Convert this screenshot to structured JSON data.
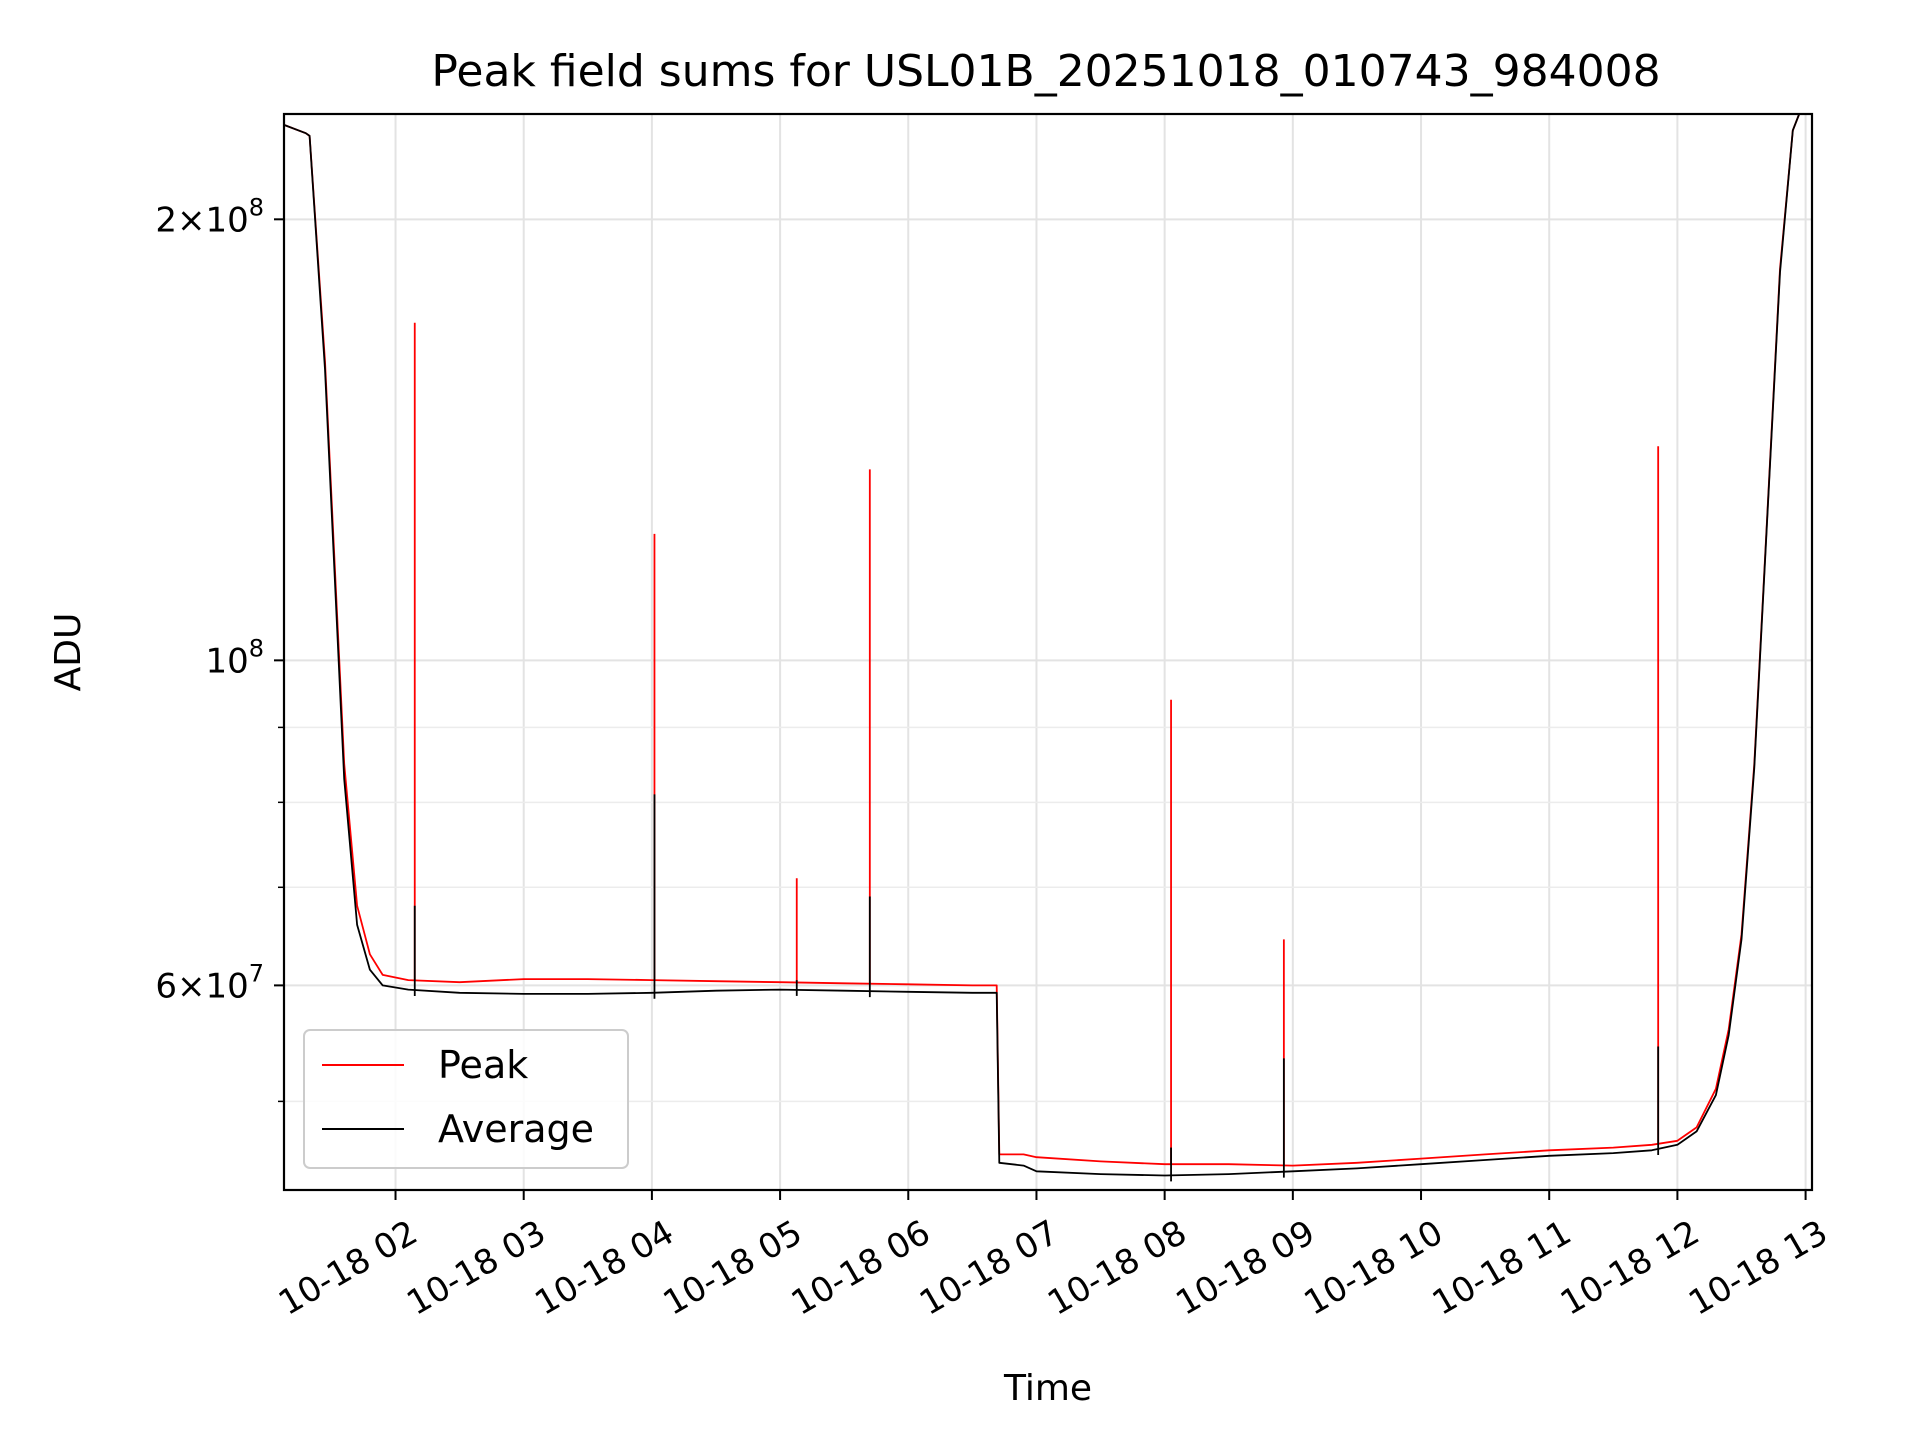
{
  "chart_data": {
    "type": "line",
    "title": "Peak field sums for USL01B_20251018_010743_984008",
    "xlabel": "Time",
    "ylabel": "ADU",
    "yscale": "log",
    "ylim": [
      43500000,
      236000000
    ],
    "xlim_hours": [
      1.13,
      13.05
    ],
    "grid": true,
    "x_ticks": [
      {
        "hour": 2,
        "label": "10-18 02"
      },
      {
        "hour": 3,
        "label": "10-18 03"
      },
      {
        "hour": 4,
        "label": "10-18 04"
      },
      {
        "hour": 5,
        "label": "10-18 05"
      },
      {
        "hour": 6,
        "label": "10-18 06"
      },
      {
        "hour": 7,
        "label": "10-18 07"
      },
      {
        "hour": 8,
        "label": "10-18 08"
      },
      {
        "hour": 9,
        "label": "10-18 09"
      },
      {
        "hour": 10,
        "label": "10-18 10"
      },
      {
        "hour": 11,
        "label": "10-18 11"
      },
      {
        "hour": 12,
        "label": "10-18 12"
      },
      {
        "hour": 13,
        "label": "10-18 13"
      }
    ],
    "y_major_ticks": [
      {
        "value": 60000000,
        "mantissa": "6",
        "base": "10",
        "exp": "7"
      },
      {
        "value": 100000000,
        "mantissa": "",
        "base": "10",
        "exp": "8"
      },
      {
        "value": 200000000,
        "mantissa": "2",
        "base": "10",
        "exp": "8"
      }
    ],
    "y_minor_ticks": [
      50000000,
      70000000,
      80000000,
      90000000
    ],
    "legend_position": "lower-left",
    "series": [
      {
        "name": "Peak",
        "color": "#ff0000",
        "x": [
          1.13,
          1.3,
          1.33,
          1.45,
          1.6,
          1.7,
          1.8,
          1.9,
          2.1,
          2.5,
          3.0,
          3.5,
          4.0,
          4.5,
          5.0,
          5.5,
          6.0,
          6.5,
          6.69,
          6.71,
          6.9,
          7.0,
          7.5,
          8.0,
          8.5,
          9.0,
          9.5,
          10.0,
          10.5,
          11.0,
          11.5,
          11.8,
          12.0,
          12.15,
          12.3,
          12.4,
          12.5,
          12.6,
          12.7,
          12.8,
          12.9,
          12.95
        ],
        "values": [
          232000000,
          229000000,
          228000000,
          160000000,
          85000000,
          68000000,
          63000000,
          61000000,
          60500000,
          60300000,
          60600000,
          60600000,
          60500000,
          60400000,
          60300000,
          60200000,
          60100000,
          60000000,
          60000000,
          46000000,
          46000000,
          45800000,
          45500000,
          45300000,
          45300000,
          45200000,
          45400000,
          45700000,
          46000000,
          46300000,
          46500000,
          46700000,
          47000000,
          48000000,
          51000000,
          56000000,
          65000000,
          85000000,
          125000000,
          185000000,
          230000000,
          236000000
        ]
      },
      {
        "name": "Average",
        "color": "#000000",
        "x": [
          1.13,
          1.3,
          1.33,
          1.45,
          1.6,
          1.7,
          1.8,
          1.9,
          2.1,
          2.5,
          3.0,
          3.5,
          4.0,
          4.5,
          5.0,
          5.5,
          6.0,
          6.5,
          6.69,
          6.71,
          6.9,
          7.0,
          7.5,
          8.0,
          8.5,
          9.0,
          9.5,
          10.0,
          10.5,
          11.0,
          11.5,
          11.8,
          12.0,
          12.15,
          12.3,
          12.4,
          12.5,
          12.6,
          12.7,
          12.8,
          12.9,
          12.95
        ],
        "values": [
          232000000,
          229000000,
          228000000,
          158000000,
          83000000,
          66000000,
          61500000,
          60000000,
          59600000,
          59300000,
          59200000,
          59200000,
          59300000,
          59500000,
          59600000,
          59500000,
          59400000,
          59300000,
          59300000,
          45400000,
          45200000,
          44800000,
          44600000,
          44500000,
          44600000,
          44800000,
          45000000,
          45300000,
          45600000,
          45900000,
          46100000,
          46300000,
          46700000,
          47700000,
          50500000,
          55500000,
          64500000,
          84500000,
          124500000,
          184000000,
          230000000,
          236000000
        ]
      }
    ],
    "spikes": [
      {
        "hour": 2.15,
        "peak": 170000000,
        "average": 68000000
      },
      {
        "hour": 4.02,
        "peak": 122000000,
        "average": 81000000
      },
      {
        "hour": 5.13,
        "peak": 71000000,
        "average": 60500000
      },
      {
        "hour": 5.7,
        "peak": 135000000,
        "average": 69000000
      },
      {
        "hour": 8.05,
        "peak": 94000000,
        "average": 46500000
      },
      {
        "hour": 8.93,
        "peak": 64500000,
        "average": 53500000
      },
      {
        "hour": 11.85,
        "peak": 140000000,
        "average": 54500000
      }
    ]
  }
}
